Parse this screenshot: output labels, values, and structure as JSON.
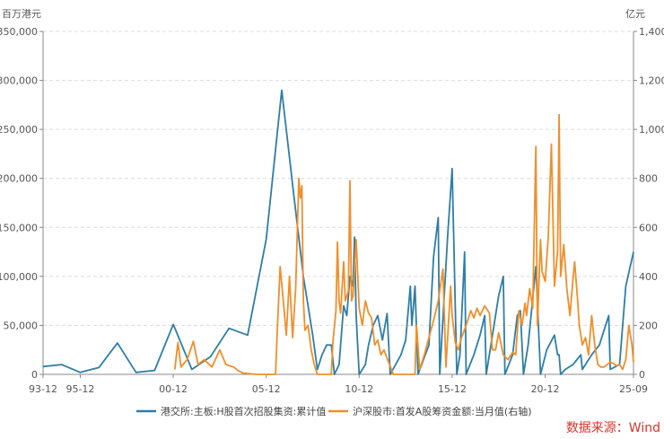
{
  "chart_data": {
    "type": "line",
    "x_ticks": [
      "93-12",
      "95-12",
      "00-12",
      "05-12",
      "10-12",
      "15-12",
      "20-12",
      "25-09"
    ],
    "left_axis": {
      "unit": "百万港元",
      "ylim": [
        0,
        350000
      ],
      "ticks": [
        "0",
        "50,000",
        "100,000",
        "150,000",
        "200,000",
        "250,000",
        "300,000",
        "350,000"
      ]
    },
    "right_axis": {
      "unit": "亿元",
      "ylim": [
        0,
        1400
      ],
      "ticks": [
        "0",
        "200",
        "400",
        "600",
        "800",
        "1,000",
        "1,200",
        "1,400"
      ]
    },
    "grid": true,
    "legend_position": "bottom",
    "source": "数据来源：Wind",
    "series": [
      {
        "name": "港交所:主板:H股首次招股集资:累计值",
        "axis": "left",
        "color": "#2e7ea6",
        "points": [
          [
            "1993-12",
            8000
          ],
          [
            "1994-12",
            10000
          ],
          [
            "1995-12",
            2000
          ],
          [
            "1996-12",
            7000
          ],
          [
            "1997-12",
            32000
          ],
          [
            "1998-12",
            2000
          ],
          [
            "1999-12",
            4000
          ],
          [
            "2000-12",
            51000
          ],
          [
            "2001-12",
            5000
          ],
          [
            "2002-12",
            18000
          ],
          [
            "2003-12",
            47000
          ],
          [
            "2004-12",
            40000
          ],
          [
            "2005-12",
            138000
          ],
          [
            "2006-10",
            290000
          ],
          [
            "2007-06",
            180000
          ],
          [
            "2007-12",
            100000
          ],
          [
            "2008-06",
            40000
          ],
          [
            "2008-09",
            5000
          ],
          [
            "2008-12",
            20000
          ],
          [
            "2009-03",
            30000
          ],
          [
            "2009-06",
            30000
          ],
          [
            "2009-08",
            0
          ],
          [
            "2009-11",
            10000
          ],
          [
            "2010-02",
            70000
          ],
          [
            "2010-04",
            60000
          ],
          [
            "2010-06",
            100000
          ],
          [
            "2010-08",
            90000
          ],
          [
            "2010-09",
            140000
          ],
          [
            "2010-10",
            60000
          ],
          [
            "2010-12",
            0
          ],
          [
            "2011-04",
            10000
          ],
          [
            "2011-06",
            30000
          ],
          [
            "2011-09",
            50000
          ],
          [
            "2011-12",
            60000
          ],
          [
            "2012-03",
            35000
          ],
          [
            "2012-06",
            62000
          ],
          [
            "2012-08",
            0
          ],
          [
            "2013-03",
            20000
          ],
          [
            "2013-06",
            35000
          ],
          [
            "2013-09",
            90000
          ],
          [
            "2013-10",
            50000
          ],
          [
            "2013-12",
            90000
          ],
          [
            "2014-02",
            0
          ],
          [
            "2014-09",
            30000
          ],
          [
            "2014-12",
            120000
          ],
          [
            "2015-03",
            160000
          ],
          [
            "2015-04",
            0
          ],
          [
            "2015-09",
            140000
          ],
          [
            "2015-12",
            210000
          ],
          [
            "2016-03",
            0
          ],
          [
            "2016-05",
            20000
          ],
          [
            "2016-08",
            125000
          ],
          [
            "2016-09",
            0
          ],
          [
            "2017-02",
            20000
          ],
          [
            "2017-06",
            40000
          ],
          [
            "2017-09",
            60000
          ],
          [
            "2017-10",
            0
          ],
          [
            "2018-01",
            30000
          ],
          [
            "2018-06",
            80000
          ],
          [
            "2018-09",
            100000
          ],
          [
            "2018-10",
            0
          ],
          [
            "2019-03",
            20000
          ],
          [
            "2019-06",
            60000
          ],
          [
            "2019-08",
            65000
          ],
          [
            "2019-10",
            0
          ],
          [
            "2020-01",
            30000
          ],
          [
            "2020-06",
            110000
          ],
          [
            "2020-09",
            0
          ],
          [
            "2021-01",
            25000
          ],
          [
            "2021-06",
            40000
          ],
          [
            "2021-08",
            20000
          ],
          [
            "2021-09",
            20000
          ],
          [
            "2021-10",
            0
          ],
          [
            "2022-01",
            5000
          ],
          [
            "2022-06",
            10000
          ],
          [
            "2022-11",
            20000
          ],
          [
            "2022-12",
            5000
          ],
          [
            "2023-06",
            20000
          ],
          [
            "2023-11",
            30000
          ],
          [
            "2024-05",
            60000
          ],
          [
            "2024-06",
            5000
          ],
          [
            "2024-12",
            10000
          ],
          [
            "2025-04",
            90000
          ],
          [
            "2025-09",
            125000
          ]
        ]
      },
      {
        "name": "沪深股市:首发A股筹资金额:当月值(右轴)",
        "axis": "right",
        "color": "#ef8f2b",
        "points": [
          [
            "2001-01",
            20
          ],
          [
            "2001-03",
            130
          ],
          [
            "2001-05",
            30
          ],
          [
            "2001-09",
            60
          ],
          [
            "2002-01",
            135
          ],
          [
            "2002-04",
            40
          ],
          [
            "2002-08",
            60
          ],
          [
            "2003-01",
            30
          ],
          [
            "2003-06",
            100
          ],
          [
            "2003-10",
            40
          ],
          [
            "2004-03",
            30
          ],
          [
            "2004-06",
            15
          ],
          [
            "2004-09",
            5
          ],
          [
            "2005-06",
            0
          ],
          [
            "2006-06",
            0
          ],
          [
            "2006-07",
            160
          ],
          [
            "2006-09",
            440
          ],
          [
            "2006-11",
            300
          ],
          [
            "2007-01",
            160
          ],
          [
            "2007-03",
            400
          ],
          [
            "2007-05",
            150
          ],
          [
            "2007-07",
            350
          ],
          [
            "2007-09",
            800
          ],
          [
            "2007-10",
            720
          ],
          [
            "2007-11",
            770
          ],
          [
            "2007-12",
            300
          ],
          [
            "2008-01",
            180
          ],
          [
            "2008-03",
            200
          ],
          [
            "2008-05",
            100
          ],
          [
            "2008-07",
            40
          ],
          [
            "2008-09",
            0
          ],
          [
            "2009-06",
            0
          ],
          [
            "2009-07",
            130
          ],
          [
            "2009-09",
            260
          ],
          [
            "2009-10",
            540
          ],
          [
            "2009-11",
            300
          ],
          [
            "2009-12",
            250
          ],
          [
            "2010-02",
            460
          ],
          [
            "2010-03",
            300
          ],
          [
            "2010-05",
            340
          ],
          [
            "2010-06",
            790
          ],
          [
            "2010-07",
            300
          ],
          [
            "2010-08",
            320
          ],
          [
            "2010-10",
            550
          ],
          [
            "2010-12",
            270
          ],
          [
            "2011-02",
            200
          ],
          [
            "2011-04",
            300
          ],
          [
            "2011-06",
            250
          ],
          [
            "2011-08",
            230
          ],
          [
            "2011-10",
            120
          ],
          [
            "2011-12",
            140
          ],
          [
            "2012-02",
            80
          ],
          [
            "2012-04",
            100
          ],
          [
            "2012-07",
            50
          ],
          [
            "2012-10",
            0
          ],
          [
            "2013-12",
            0
          ],
          [
            "2014-01",
            200
          ],
          [
            "2014-03",
            20
          ],
          [
            "2014-06",
            80
          ],
          [
            "2014-09",
            150
          ],
          [
            "2014-12",
            220
          ],
          [
            "2015-03",
            300
          ],
          [
            "2015-06",
            430
          ],
          [
            "2015-08",
            30
          ],
          [
            "2015-11",
            360
          ],
          [
            "2015-12",
            240
          ],
          [
            "2016-02",
            130
          ],
          [
            "2016-04",
            100
          ],
          [
            "2016-06",
            150
          ],
          [
            "2016-09",
            200
          ],
          [
            "2016-12",
            260
          ],
          [
            "2017-02",
            230
          ],
          [
            "2017-04",
            270
          ],
          [
            "2017-06",
            240
          ],
          [
            "2017-09",
            280
          ],
          [
            "2017-11",
            260
          ],
          [
            "2017-12",
            250
          ],
          [
            "2018-02",
            100
          ],
          [
            "2018-04",
            100
          ],
          [
            "2018-06",
            170
          ],
          [
            "2018-09",
            80
          ],
          [
            "2018-12",
            60
          ],
          [
            "2019-03",
            90
          ],
          [
            "2019-05",
            80
          ],
          [
            "2019-07",
            260
          ],
          [
            "2019-09",
            200
          ],
          [
            "2019-11",
            290
          ],
          [
            "2019-12",
            240
          ],
          [
            "2020-02",
            350
          ],
          [
            "2020-04",
            270
          ],
          [
            "2020-06",
            930
          ],
          [
            "2020-07",
            200
          ],
          [
            "2020-09",
            550
          ],
          [
            "2020-10",
            420
          ],
          [
            "2020-12",
            380
          ],
          [
            "2021-02",
            560
          ],
          [
            "2021-04",
            940
          ],
          [
            "2021-06",
            360
          ],
          [
            "2021-08",
            500
          ],
          [
            "2021-09",
            1060
          ],
          [
            "2021-10",
            400
          ],
          [
            "2021-12",
            530
          ],
          [
            "2022-02",
            350
          ],
          [
            "2022-04",
            240
          ],
          [
            "2022-06",
            390
          ],
          [
            "2022-07",
            460
          ],
          [
            "2022-09",
            300
          ],
          [
            "2022-10",
            200
          ],
          [
            "2022-12",
            120
          ],
          [
            "2023-02",
            150
          ],
          [
            "2023-04",
            80
          ],
          [
            "2023-06",
            240
          ],
          [
            "2023-08",
            120
          ],
          [
            "2023-10",
            40
          ],
          [
            "2023-12",
            30
          ],
          [
            "2024-02",
            30
          ],
          [
            "2024-04",
            40
          ],
          [
            "2024-06",
            50
          ],
          [
            "2024-08",
            45
          ],
          [
            "2024-10",
            35
          ],
          [
            "2024-12",
            40
          ],
          [
            "2025-02",
            20
          ],
          [
            "2025-04",
            60
          ],
          [
            "2025-06",
            200
          ],
          [
            "2025-08",
            120
          ],
          [
            "2025-09",
            50
          ]
        ]
      }
    ]
  }
}
